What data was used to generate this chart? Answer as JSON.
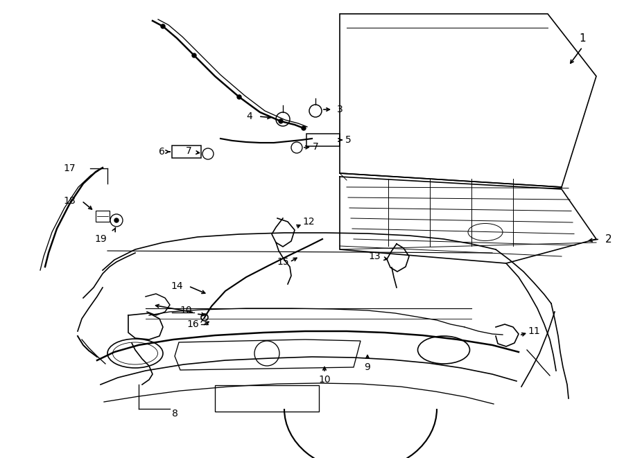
{
  "bg_color": "#ffffff",
  "line_color": "#000000",
  "fig_width": 9.0,
  "fig_height": 6.61,
  "dpi": 100,
  "fontsize_label": 10,
  "lw_main": 1.2,
  "lw_thin": 0.7,
  "lw_thick": 1.8
}
